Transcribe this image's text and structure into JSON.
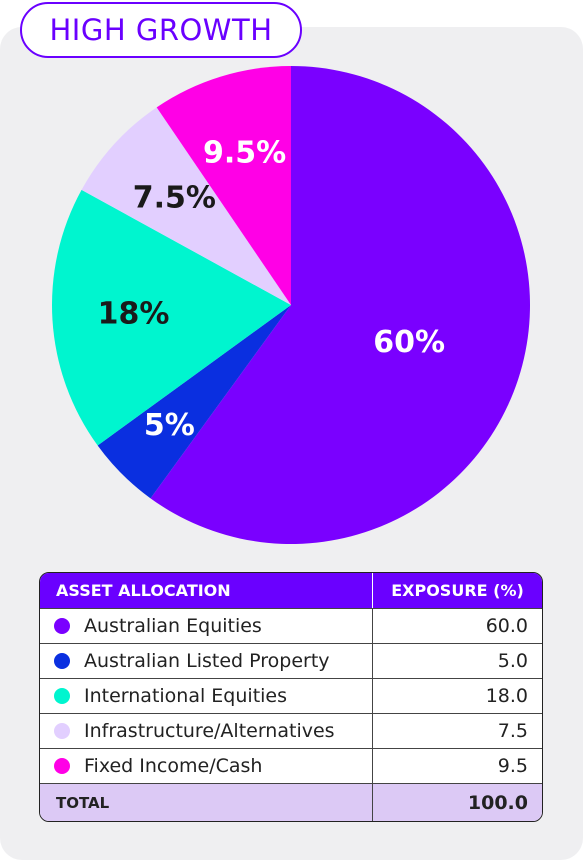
{
  "badge": {
    "title": "HIGH GROWTH"
  },
  "chart_data": {
    "type": "pie",
    "slices": [
      {
        "label": "Australian Equities",
        "value": 60.0,
        "display": "60%",
        "color": "#7a00ff",
        "label_color": "#ffffff"
      },
      {
        "label": "Australian Listed Property",
        "value": 5.0,
        "display": "5%",
        "color": "#0a2fe0",
        "label_color": "#ffffff"
      },
      {
        "label": "International Equities",
        "value": 18.0,
        "display": "18%",
        "color": "#00f5cf",
        "label_color": "#1a1a1a"
      },
      {
        "label": "Infrastructure/Alternatives",
        "value": 7.5,
        "display": "7.5%",
        "color": "#e2cfff",
        "label_color": "#1a1a1a"
      },
      {
        "label": "Fixed Income/Cash",
        "value": 9.5,
        "display": "9.5%",
        "color": "#ff00e6",
        "label_color": "#ffffff"
      }
    ]
  },
  "table": {
    "header_asset": "ASSET ALLOCATION",
    "header_exposure": "EXPOSURE (%)",
    "rows": [
      {
        "name": "Australian Equities",
        "value": "60.0",
        "color": "#7a00ff"
      },
      {
        "name": "Australian Listed Property",
        "value": "5.0",
        "color": "#0a2fe0"
      },
      {
        "name": "International Equities",
        "value": "18.0",
        "color": "#00f5cf"
      },
      {
        "name": "Infrastructure/Alternatives",
        "value": "7.5",
        "color": "#e2cfff"
      },
      {
        "name": "Fixed Income/Cash",
        "value": "9.5",
        "color": "#ff00e6"
      }
    ],
    "total_label": "TOTAL",
    "total_value": "100.0"
  }
}
